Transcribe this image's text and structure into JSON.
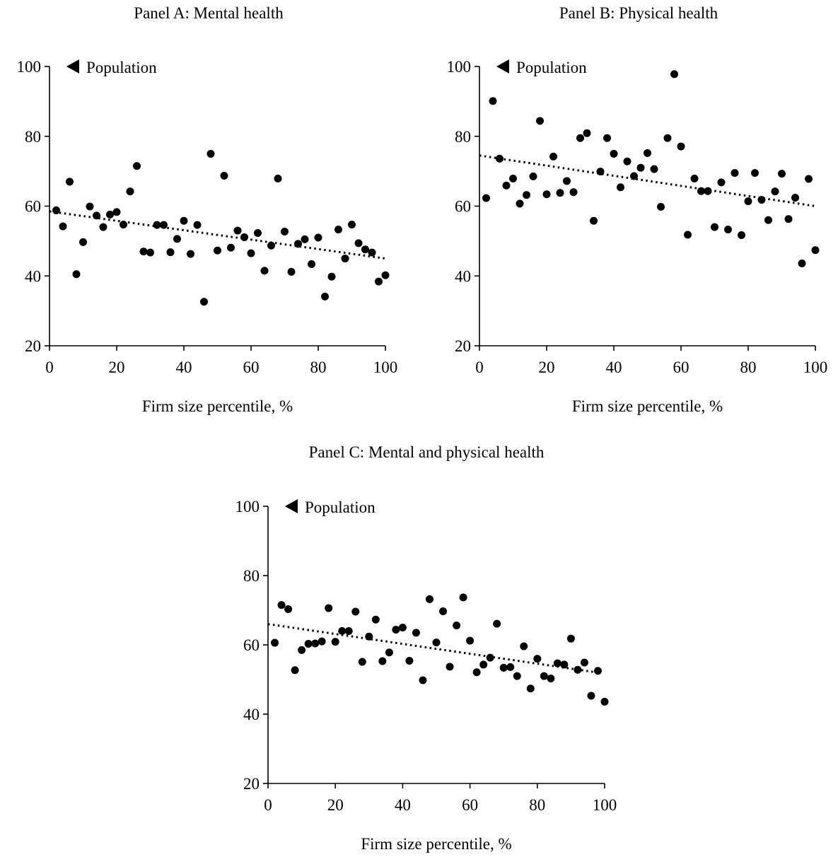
{
  "chart_data": [
    {
      "type": "scatter",
      "title": "Panel A: Mental health",
      "xlabel": "Firm size percentile, %",
      "ylabel": "",
      "xlim": [
        0,
        100
      ],
      "ylim": [
        20,
        100
      ],
      "xticks": [
        0,
        20,
        40,
        60,
        80,
        100
      ],
      "yticks": [
        20,
        40,
        60,
        80,
        100
      ],
      "annotation": "Population",
      "marker_value": 100,
      "trendline": {
        "style": "dotted",
        "x": [
          0,
          100
        ],
        "y": [
          58.5,
          45
        ]
      },
      "series": [
        {
          "x": [
            2,
            4,
            6,
            8,
            10,
            12,
            14,
            16,
            18,
            20,
            22,
            24,
            26,
            28,
            30,
            32,
            34,
            36,
            38,
            40,
            42,
            44,
            46,
            48,
            50,
            52,
            54,
            56,
            58,
            60,
            62,
            64,
            66,
            68,
            70,
            72,
            74,
            76,
            78,
            80,
            82,
            84,
            86,
            88,
            90,
            92,
            94,
            96,
            98,
            100
          ],
          "y": [
            58.8,
            54.2,
            67,
            40.5,
            49.7,
            59.9,
            57.3,
            54,
            57.6,
            58.3,
            54.7,
            64.2,
            71.5,
            47,
            46.7,
            54.6,
            54.6,
            46.8,
            50.6,
            55.8,
            46.3,
            54.6,
            32.6,
            75,
            47.3,
            68.7,
            48.1,
            53,
            51.1,
            46.5,
            52.3,
            41.5,
            48.7,
            67.9,
            52.7,
            41.2,
            49.2,
            50.5,
            43.4,
            51,
            34.1,
            39.8,
            53.3,
            45,
            54.7,
            49.4,
            47.6,
            46.7,
            38.4,
            40.2
          ]
        }
      ]
    },
    {
      "type": "scatter",
      "title": "Panel B: Physical health",
      "xlabel": "Firm size percentile, %",
      "ylabel": "",
      "xlim": [
        0,
        100
      ],
      "ylim": [
        20,
        100
      ],
      "xticks": [
        0,
        20,
        40,
        60,
        80,
        100
      ],
      "yticks": [
        20,
        40,
        60,
        80,
        100
      ],
      "annotation": "Population",
      "marker_value": 100,
      "trendline": {
        "style": "dotted",
        "x": [
          0,
          100
        ],
        "y": [
          74.5,
          60
        ]
      },
      "series": [
        {
          "x": [
            2,
            4,
            6,
            8,
            10,
            12,
            14,
            16,
            18,
            20,
            22,
            24,
            26,
            28,
            30,
            32,
            34,
            36,
            38,
            40,
            42,
            44,
            46,
            48,
            50,
            52,
            54,
            56,
            58,
            60,
            62,
            64,
            66,
            68,
            70,
            72,
            74,
            76,
            78,
            80,
            82,
            84,
            86,
            88,
            90,
            92,
            94,
            96,
            98,
            100
          ],
          "y": [
            62.3,
            90.1,
            73.6,
            65.9,
            67.9,
            60.7,
            63.2,
            68.5,
            84.4,
            63.4,
            74.2,
            63.8,
            67.2,
            64,
            79.5,
            80.9,
            55.8,
            69.9,
            79.5,
            75,
            65.4,
            72.8,
            68.6,
            71,
            75.2,
            70.6,
            59.8,
            79.5,
            97.8,
            77.1,
            51.8,
            67.9,
            64.3,
            64.3,
            54,
            66.8,
            53.3,
            69.5,
            51.7,
            61.4,
            69.5,
            61.8,
            56,
            64.2,
            69.3,
            56.3,
            62.4,
            43.6,
            67.8,
            47.4
          ]
        }
      ]
    },
    {
      "type": "scatter",
      "title": "Panel C: Mental and physical health",
      "xlabel": "Firm size percentile, %",
      "ylabel": "",
      "xlim": [
        0,
        100
      ],
      "ylim": [
        20,
        100
      ],
      "xticks": [
        0,
        20,
        40,
        60,
        80,
        100
      ],
      "yticks": [
        20,
        40,
        60,
        80,
        100
      ],
      "annotation": "Population",
      "marker_value": 100,
      "trendline": {
        "style": "dotted",
        "x": [
          0,
          98
        ],
        "y": [
          66,
          52
        ]
      },
      "series": [
        {
          "x": [
            2,
            4,
            6,
            8,
            10,
            12,
            14,
            16,
            18,
            20,
            22,
            24,
            26,
            28,
            30,
            32,
            34,
            36,
            38,
            40,
            42,
            44,
            46,
            48,
            50,
            52,
            54,
            56,
            58,
            60,
            62,
            64,
            66,
            68,
            70,
            72,
            74,
            76,
            78,
            80,
            82,
            84,
            86,
            88,
            90,
            92,
            94,
            96,
            98,
            100
          ],
          "y": [
            60.6,
            71.5,
            70.3,
            52.7,
            58.5,
            60.3,
            60.4,
            61,
            70.6,
            60.9,
            64,
            64,
            69.6,
            55.1,
            62.4,
            67.3,
            55.3,
            57.8,
            64.4,
            65,
            55.4,
            63.5,
            49.8,
            73.2,
            60.7,
            69.7,
            53.7,
            65.6,
            73.7,
            61.2,
            52.1,
            54.3,
            56.3,
            66.1,
            53.4,
            53.6,
            51,
            59.6,
            47.4,
            56,
            51,
            50.3,
            54.7,
            54.3,
            61.8,
            52.8,
            54.9,
            45.3,
            52.5,
            43.6
          ]
        }
      ]
    }
  ]
}
